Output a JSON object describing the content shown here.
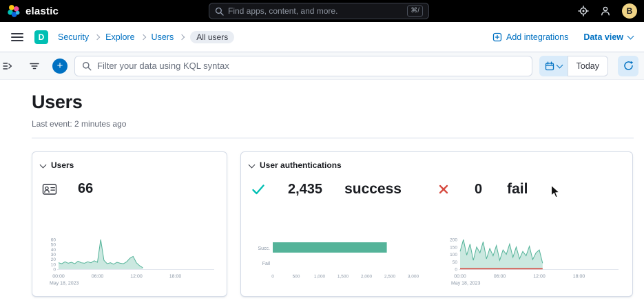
{
  "colors": {
    "accent": "#0071c2",
    "teal": "#00bfb3",
    "chart_green": "#54b399",
    "fail_red": "#d6493f",
    "border": "#d3dae6"
  },
  "header": {
    "logo_text": "elastic",
    "search_placeholder": "Find apps, content, and more.",
    "search_shortcut": "⌘/",
    "avatar_initial": "B"
  },
  "breadcrumb_bar": {
    "space_badge": "D",
    "breadcrumbs": [
      {
        "label": "Security"
      },
      {
        "label": "Explore"
      },
      {
        "label": "Users"
      },
      {
        "label": "All users"
      }
    ],
    "add_integrations_label": "Add integrations",
    "data_view_label": "Data view"
  },
  "filter_bar": {
    "kql_placeholder": "Filter your data using KQL syntax",
    "today_label": "Today"
  },
  "page": {
    "title": "Users",
    "last_event": "Last event: 2 minutes ago"
  },
  "users_card": {
    "title": "Users",
    "count": "66"
  },
  "auth_card": {
    "title": "User authentications",
    "success_value": "2,435",
    "success_label": "success",
    "fail_value": "0",
    "fail_label": "fail"
  },
  "chart_data": [
    {
      "id": "users-spark",
      "type": "area",
      "step_hours": 0.5,
      "xmax_hours": 24,
      "ylim": [
        0,
        60
      ],
      "y_ticks": [
        0,
        10,
        20,
        30,
        40,
        50,
        60
      ],
      "x_ticks": [
        {
          "hour": 0,
          "label": "00:00"
        },
        {
          "hour": 6,
          "label": "06:00"
        },
        {
          "hour": 12,
          "label": "12:00"
        },
        {
          "hour": 18,
          "label": "18:00"
        }
      ],
      "date_label": "May 18, 2023",
      "values": [
        13,
        11,
        15,
        12,
        14,
        11,
        16,
        13,
        12,
        15,
        13,
        17,
        14,
        60,
        18,
        11,
        13,
        10,
        14,
        12,
        11,
        15,
        22,
        26,
        13,
        7,
        3
      ]
    },
    {
      "id": "auth-bars",
      "type": "bar",
      "orientation": "horizontal",
      "categories": [
        "Succ.",
        "Fail"
      ],
      "values": [
        2435,
        0
      ],
      "xlim": [
        0,
        3000
      ],
      "x_ticks": [
        {
          "v": 0,
          "label": "0"
        },
        {
          "v": 500,
          "label": "500"
        },
        {
          "v": 1000,
          "label": "1,000"
        },
        {
          "v": 1500,
          "label": "1,500"
        },
        {
          "v": 2000,
          "label": "2,000"
        },
        {
          "v": 2500,
          "label": "2,500"
        },
        {
          "v": 3000,
          "label": "3,000"
        }
      ]
    },
    {
      "id": "auth-spark",
      "type": "area",
      "step_hours": 0.5,
      "xmax_hours": 24,
      "ylim": [
        0,
        200
      ],
      "y_ticks": [
        0,
        50,
        100,
        150,
        200
      ],
      "x_ticks": [
        {
          "hour": 0,
          "label": "00:00"
        },
        {
          "hour": 6,
          "label": "06:00"
        },
        {
          "hour": 12,
          "label": "12:00"
        },
        {
          "hour": 18,
          "label": "18:00"
        }
      ],
      "date_label": "May 18, 2023",
      "values": [
        120,
        200,
        95,
        170,
        60,
        150,
        110,
        185,
        70,
        140,
        90,
        160,
        60,
        130,
        100,
        170,
        80,
        150,
        70,
        120,
        90,
        155,
        65,
        110,
        130,
        40
      ],
      "overlay": {
        "name": "Fail",
        "value": 0,
        "to_hour": 12.5
      }
    }
  ]
}
